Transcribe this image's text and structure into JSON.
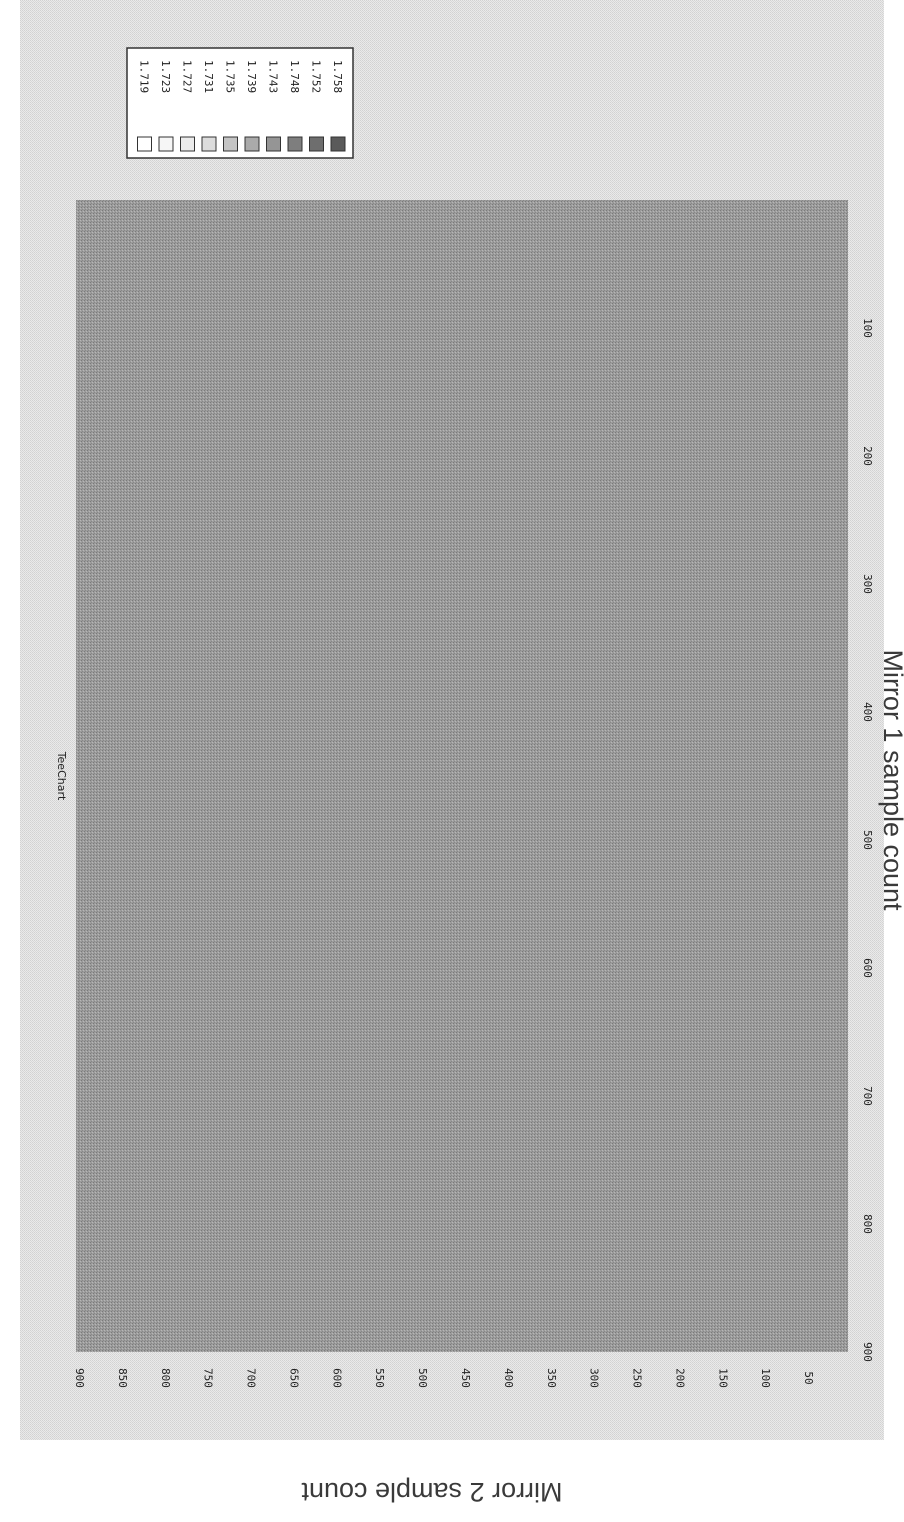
{
  "chart_data": {
    "type": "heatmap",
    "title": "TeeChart",
    "xlabel": "Mirror 1 sample count",
    "ylabel": "Mirror 2 sample count",
    "x_ticks": [
      100,
      200,
      300,
      400,
      500,
      600,
      700,
      800,
      900
    ],
    "y_ticks": [
      50,
      100,
      150,
      200,
      250,
      300,
      350,
      400,
      450,
      500,
      550,
      600,
      650,
      700,
      750,
      800,
      850,
      900
    ],
    "y_tick_labels": [
      "50",
      "100",
      "150",
      "200",
      "250",
      "300",
      "350",
      "400",
      "450",
      "500",
      "550",
      "600",
      "650",
      "700",
      "750",
      "800",
      "850",
      "900"
    ],
    "xlim": [
      0,
      900
    ],
    "ylim": [
      0,
      900
    ],
    "legend": {
      "placement": "top-right",
      "levels": [
        "1.758",
        "1.752",
        "1.748",
        "1.743",
        "1.739",
        "1.735",
        "1.731",
        "1.727",
        "1.723",
        "1.719"
      ],
      "colors": [
        "#5a5a5a",
        "#6e6e6e",
        "#7e7e7e",
        "#959595",
        "#aaaaaa",
        "#c4c4c4",
        "#dcdcdc",
        "#ececec",
        "#f6f6f6",
        "#ffffff"
      ]
    },
    "field_value": "1.743",
    "field_color": "#989898",
    "panel_color": "#e6e6e6",
    "rotation": "rotated 90 degrees clockwise"
  }
}
